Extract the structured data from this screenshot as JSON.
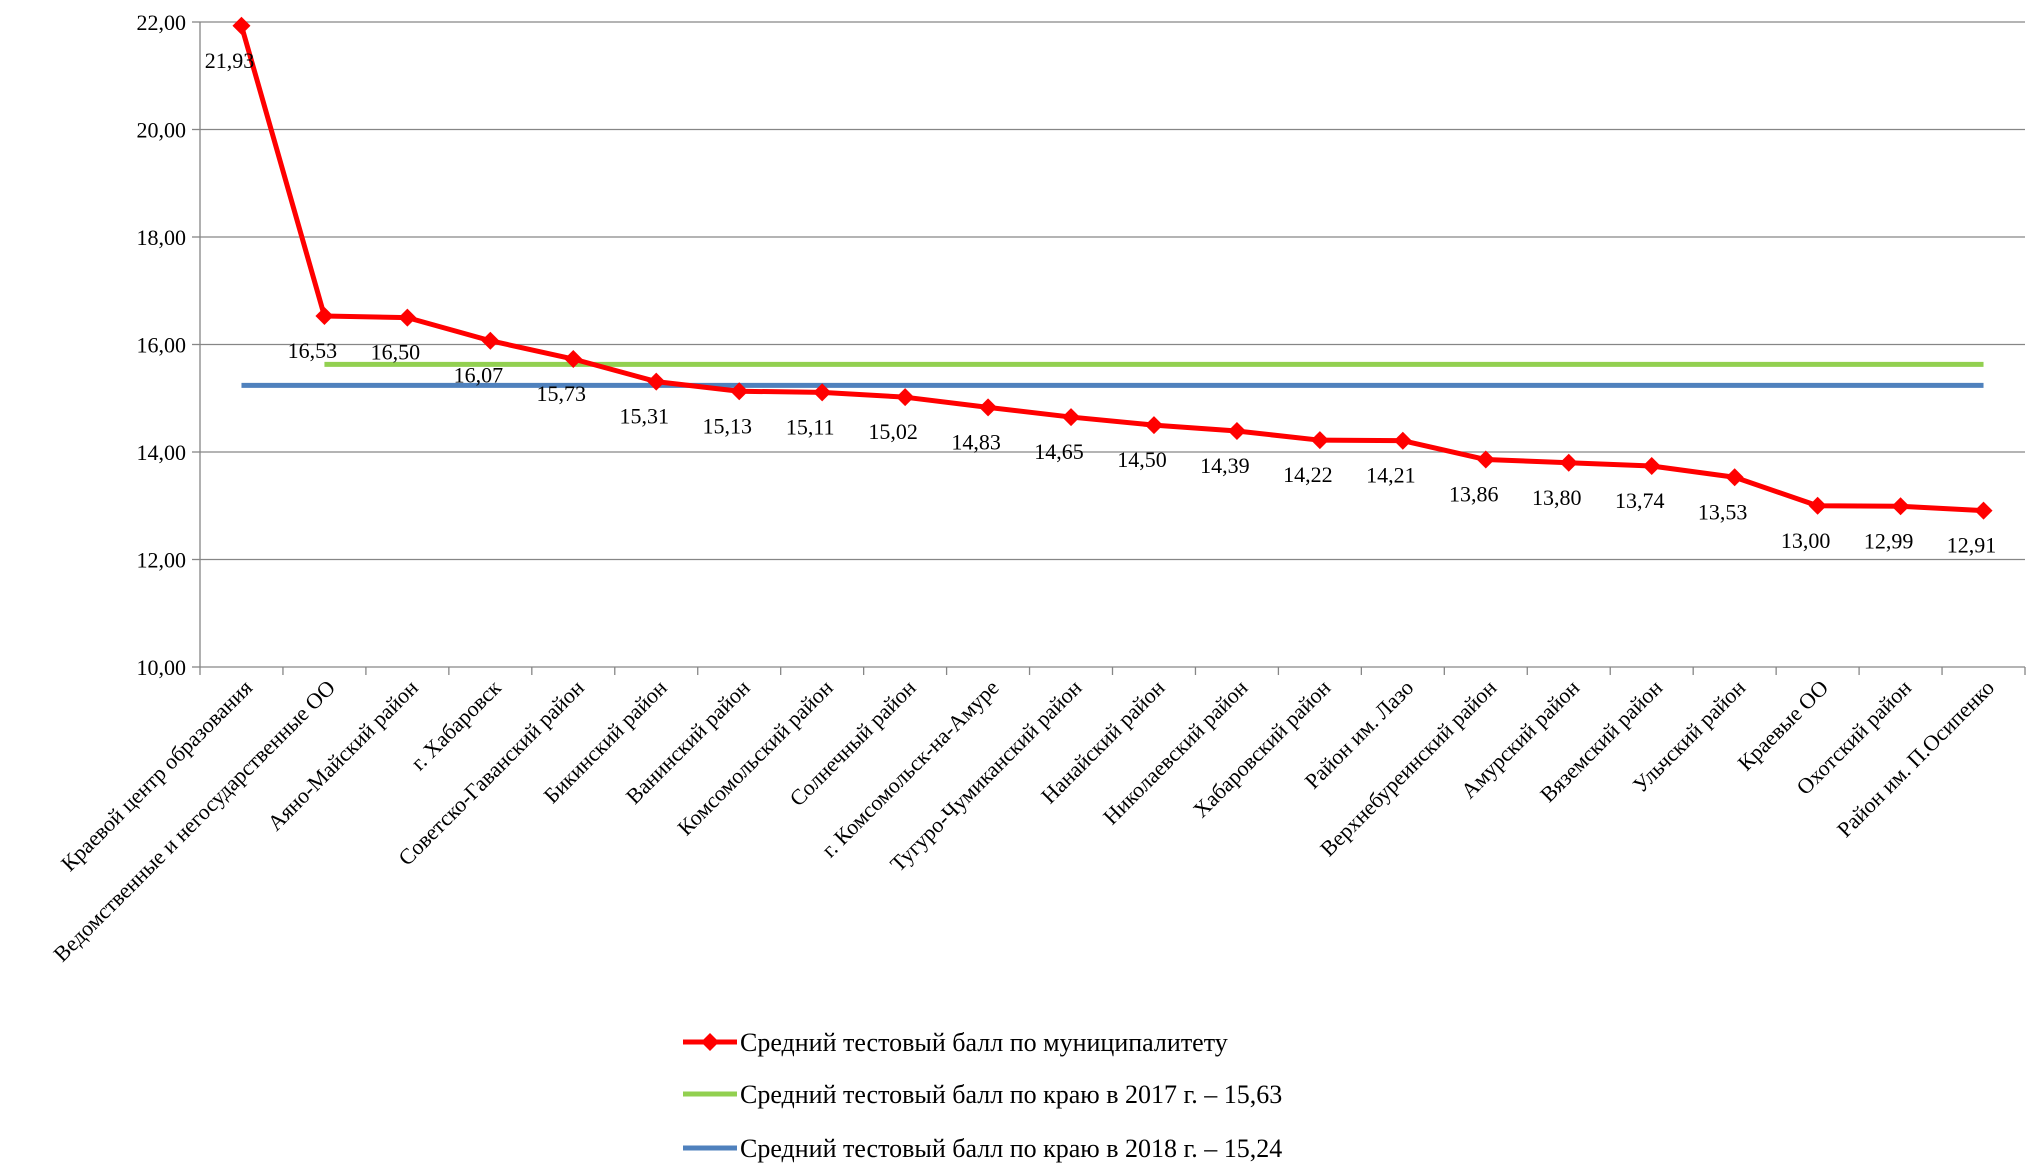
{
  "chart_data": {
    "type": "line",
    "title": "",
    "xlabel": "",
    "ylabel": "",
    "ylim": [
      10,
      22
    ],
    "y_ticks": [
      "10,00",
      "12,00",
      "14,00",
      "16,00",
      "18,00",
      "20,00",
      "22,00"
    ],
    "grid": "horizontal",
    "legend_position": "bottom",
    "categories": [
      "Краевой центр образования",
      "Ведомственные и негосударственные ОО",
      "Аяно-Майский район",
      "г. Хабаровск",
      "Советско-Гаванский район",
      "Бикинский район",
      "Ванинский район",
      "Комсомольский район",
      "Солнечный район",
      "г. Комсомольск-на-Амуре",
      "Тугуро-Чумиканский район",
      "Нанайский район",
      "Николаевский район",
      "Хабаровский район",
      "Район им. Лазо",
      "Верхнебуреинский район",
      "Амурский район",
      "Вяземский район",
      "Ульчский район",
      "Краевые ОО",
      "Охотский район",
      "Район им. П.Осипенко"
    ],
    "series": [
      {
        "name": "Средний тестовый балл по муниципалитету",
        "color": "#ff0000",
        "marker": "diamond",
        "values": [
          21.93,
          16.53,
          16.5,
          16.07,
          15.73,
          15.31,
          15.13,
          15.11,
          15.02,
          14.83,
          14.65,
          14.5,
          14.39,
          14.22,
          14.21,
          13.86,
          13.8,
          13.74,
          13.53,
          13.0,
          12.99,
          12.91
        ],
        "labels": [
          "21,93",
          "16,53",
          "16,50",
          "16,07",
          "15,73",
          "15,31",
          "15,13",
          "15,11",
          "15,02",
          "14,83",
          "14,65",
          "14,50",
          "14,39",
          "14,22",
          "14,21",
          "13,86",
          "13,80",
          "13,74",
          "13,53",
          "13,00",
          "12,99",
          "12,91"
        ]
      },
      {
        "name": "Средний тестовый балл по краю в 2017 г. – 15,63",
        "color": "#92d050",
        "value": 15.63,
        "from_index": 1,
        "to_index": 21
      },
      {
        "name": "Средний тестовый балл по краю в 2018 г. – 15,24",
        "color": "#4f81bd",
        "value": 15.24,
        "from_index": 0,
        "to_index": 21
      }
    ]
  }
}
